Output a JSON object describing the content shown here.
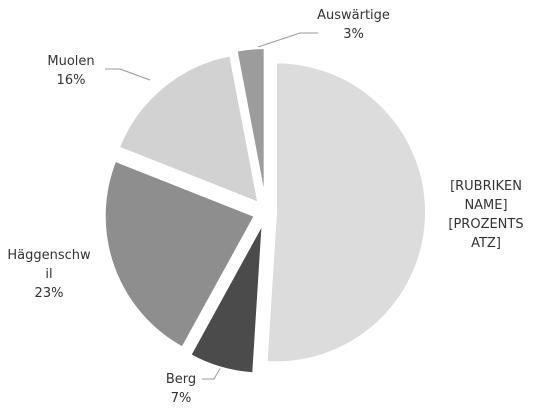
{
  "chart_data": {
    "type": "pie",
    "categories": [
      "[RUBRIKENNAME]",
      "Berg",
      "Häggenschwil",
      "Muolen",
      "Auswärtige"
    ],
    "values": [
      51,
      7,
      23,
      16,
      3
    ],
    "value_labels": [
      "[PROZENTSATZ]",
      "7%",
      "23%",
      "16%",
      "3%"
    ],
    "colors": [
      "#dcdcdc",
      "#4b4b4b",
      "#8e8e8e",
      "#d2d2d2",
      "#9c9c9c"
    ]
  }
}
